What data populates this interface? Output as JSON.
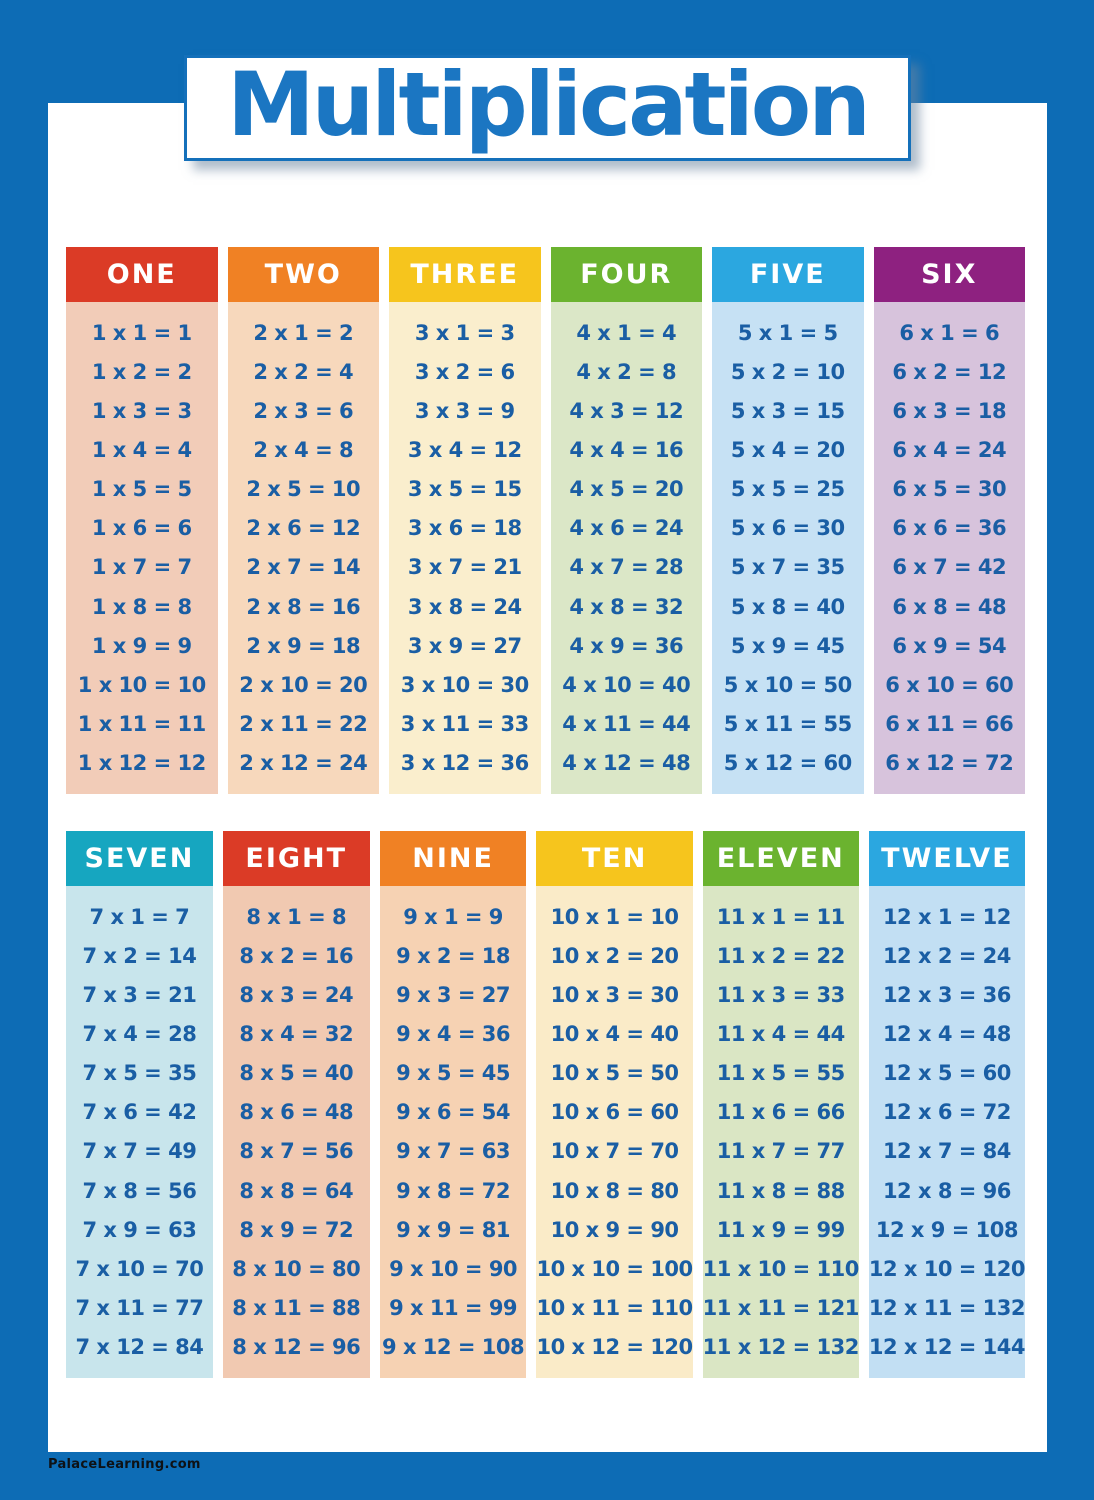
{
  "poster": {
    "title": "Multiplication",
    "footer": "PalaceLearning.com",
    "colors": {
      "frame_blue": "#0D6CB5",
      "title_blue": "#1B76C2",
      "title_border_blue": "#1470BA",
      "fact_text_blue": "#1A5EA4",
      "page_white": "#FFFFFF"
    }
  },
  "sections": [
    {
      "tables": [
        {
          "label": "ONE",
          "header_color": "#DB3B26",
          "body_color": "#F2CCB8",
          "facts": [
            "1 x 1 = 1",
            "1 x 2 = 2",
            "1 x 3 = 3",
            "1 x 4 = 4",
            "1 x 5 = 5",
            "1 x 6 = 6",
            "1 x 7 = 7",
            "1 x 8 = 8",
            "1 x 9 = 9",
            "1 x 10 = 10",
            "1 x 11 = 11",
            "1 x 12 = 12"
          ]
        },
        {
          "label": "TWO",
          "header_color": "#F08124",
          "body_color": "#F7D8BC",
          "facts": [
            "2 x 1 = 2",
            "2 x 2 = 4",
            "2 x 3 = 6",
            "2 x 4 = 8",
            "2 x 5 = 10",
            "2 x 6 = 12",
            "2 x 7 = 14",
            "2 x 8 = 16",
            "2 x 9 = 18",
            "2 x 10 = 20",
            "2 x 11 = 22",
            "2 x 12 = 24"
          ]
        },
        {
          "label": "THREE",
          "header_color": "#F6C51D",
          "body_color": "#FAEECD",
          "facts": [
            "3 x 1 = 3",
            "3 x 2 = 6",
            "3 x 3 = 9",
            "3 x 4 = 12",
            "3 x 5 = 15",
            "3 x 6 = 18",
            "3 x 7 = 21",
            "3 x 8 = 24",
            "3 x 9 = 27",
            "3 x 10 = 30",
            "3 x 11 = 33",
            "3 x 12 = 36"
          ]
        },
        {
          "label": "FOUR",
          "header_color": "#6BB32F",
          "body_color": "#DBE7C7",
          "facts": [
            "4 x 1 = 4",
            "4 x 2 = 8",
            "4 x 3 = 12",
            "4 x 4 = 16",
            "4 x 5 = 20",
            "4 x 6 = 24",
            "4 x 7 = 28",
            "4 x 8 = 32",
            "4 x 9 = 36",
            "4 x 10 = 40",
            "4 x 11 = 44",
            "4 x 12 = 48"
          ]
        },
        {
          "label": "FIVE",
          "header_color": "#2BA7E0",
          "body_color": "#C6E1F4",
          "facts": [
            "5 x 1 = 5",
            "5 x 2 = 10",
            "5 x 3 = 15",
            "5 x 4 = 20",
            "5 x 5 = 25",
            "5 x 6 = 30",
            "5 x 7 = 35",
            "5 x 8 = 40",
            "5 x 9 = 45",
            "5 x 10 = 50",
            "5 x 11 = 55",
            "5 x 12 = 60"
          ]
        },
        {
          "label": "SIX",
          "header_color": "#8E2180",
          "body_color": "#D7C3DC",
          "facts": [
            "6 x 1 = 6",
            "6 x 2 = 12",
            "6 x 3 = 18",
            "6 x 4 = 24",
            "6 x 5 = 30",
            "6 x 6 = 36",
            "6 x 7 = 42",
            "6 x 8 = 48",
            "6 x 9 = 54",
            "6 x 10 = 60",
            "6 x 11 = 66",
            "6 x 12 = 72"
          ]
        }
      ]
    },
    {
      "tables": [
        {
          "label": "SEVEN",
          "header_color": "#16A6C0",
          "body_color": "#C8E5EC",
          "facts": [
            "7 x 1 = 7",
            "7 x 2 = 14",
            "7 x 3 = 21",
            "7 x 4 = 28",
            "7 x 5 = 35",
            "7 x 6 = 42",
            "7 x 7 = 49",
            "7 x 8 = 56",
            "7 x 9 = 63",
            "7 x 10 = 70",
            "7 x 11 = 77",
            "7 x 12 = 84"
          ]
        },
        {
          "label": "EIGHT",
          "header_color": "#DB3B26",
          "body_color": "#F1C9B1",
          "facts": [
            "8 x 1 = 8",
            "8 x 2 = 16",
            "8 x 3 = 24",
            "8 x 4 = 32",
            "8 x 5 = 40",
            "8 x 6 = 48",
            "8 x 7 = 56",
            "8 x 8 = 64",
            "8 x 9 = 72",
            "8 x 10 = 80",
            "8 x 11 = 88",
            "8 x 12 = 96"
          ]
        },
        {
          "label": "NINE",
          "header_color": "#F08124",
          "body_color": "#F6D2B3",
          "facts": [
            "9 x 1 = 9",
            "9 x 2 = 18",
            "9 x 3 = 27",
            "9 x 4 = 36",
            "9 x 5 = 45",
            "9 x 6 = 54",
            "9 x 7 = 63",
            "9 x 8 = 72",
            "9 x 9 = 81",
            "9 x 10 = 90",
            "9 x 11 = 99",
            "9 x 12 = 108"
          ]
        },
        {
          "label": "TEN",
          "header_color": "#F6C51D",
          "body_color": "#FAEBC8",
          "facts": [
            "10 x 1 = 10",
            "10 x 2 = 20",
            "10 x 3 = 30",
            "10 x 4 = 40",
            "10 x 5 = 50",
            "10 x 6 = 60",
            "10 x 7 = 70",
            "10 x 8 = 80",
            "10 x 9 = 90",
            "10 x 10 = 100",
            "10 x 11 = 110",
            "10 x 12 = 120"
          ]
        },
        {
          "label": "ELEVEN",
          "header_color": "#6BB32F",
          "body_color": "#DAE6C4",
          "facts": [
            "11 x 1 = 11",
            "11 x 2 = 22",
            "11 x 3 = 33",
            "11 x 4 = 44",
            "11 x 5 = 55",
            "11 x 6 = 66",
            "11 x 7 = 77",
            "11 x 8 = 88",
            "11 x 9 = 99",
            "11 x 10 = 110",
            "11 x 11 = 121",
            "11 x 12 = 132"
          ]
        },
        {
          "label": "TWELVE",
          "header_color": "#2BA7E0",
          "body_color": "#C2DFF3",
          "facts": [
            "12 x 1 = 12",
            "12 x 2 = 24",
            "12 x 3 = 36",
            "12 x 4 = 48",
            "12 x 5 = 60",
            "12 x 6 = 72",
            "12 x 7 = 84",
            "12 x 8 = 96",
            "12 x 9 = 108",
            "12 x 10 = 120",
            "12 x 11 = 132",
            "12 x 12 = 144"
          ]
        }
      ]
    }
  ]
}
